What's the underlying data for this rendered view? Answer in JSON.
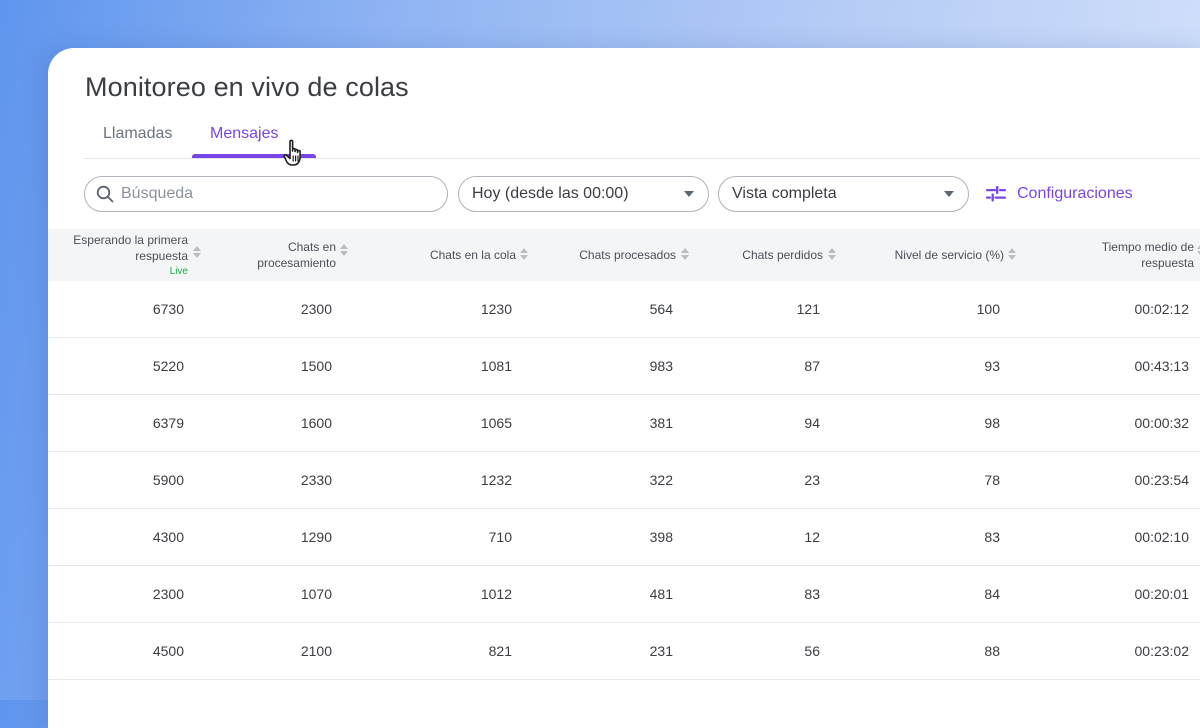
{
  "page": {
    "title": "Monitoreo en vivo de colas"
  },
  "tabs": [
    {
      "label": "Llamadas",
      "active": false
    },
    {
      "label": "Mensajes",
      "active": true
    }
  ],
  "toolbar": {
    "search_placeholder": "Búsqueda",
    "period_value": "Hoy (desde las 00:00)",
    "view_value": "Vista completa",
    "config_label": "Configuraciones",
    "accent_color": "#7a45e6"
  },
  "table": {
    "headers": [
      {
        "line1": "Esperando la primera",
        "line2": "respuesta",
        "badge": "Live"
      },
      {
        "line1": "Chats en",
        "line2": "procesamiento"
      },
      {
        "line1": "Chats en la cola"
      },
      {
        "line1": "Chats procesados"
      },
      {
        "line1": "Chats perdidos"
      },
      {
        "line1": "Nivel de servicio (%)"
      },
      {
        "line1": "Tiempo medio de",
        "line2": "respuesta"
      }
    ],
    "rows": [
      [
        "6730",
        "2300",
        "1230",
        "564",
        "121",
        "100",
        "00:02:12"
      ],
      [
        "5220",
        "1500",
        "1081",
        "983",
        "87",
        "93",
        "00:43:13"
      ],
      [
        "6379",
        "1600",
        "1065",
        "381",
        "94",
        "98",
        "00:00:32"
      ],
      [
        "5900",
        "2330",
        "1232",
        "322",
        "23",
        "78",
        "00:23:54"
      ],
      [
        "4300",
        "1290",
        "710",
        "398",
        "12",
        "83",
        "00:02:10"
      ],
      [
        "2300",
        "1070",
        "1012",
        "481",
        "83",
        "84",
        "00:20:01"
      ],
      [
        "4500",
        "2100",
        "821",
        "231",
        "56",
        "88",
        "00:23:02"
      ]
    ]
  }
}
